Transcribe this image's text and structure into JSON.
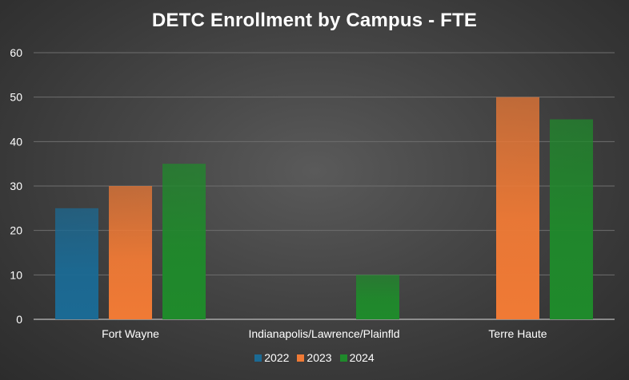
{
  "chart_data": {
    "type": "bar",
    "title": "DETC Enrollment by Campus - FTE",
    "xlabel": "",
    "ylabel": "",
    "categories": [
      "Fort Wayne",
      "Indianapolis/Lawrence/Plainfld",
      "Terre Haute"
    ],
    "series": [
      {
        "name": "2022",
        "values": [
          25,
          0,
          0
        ],
        "color": "#1b6a94"
      },
      {
        "name": "2023",
        "values": [
          30,
          0,
          50
        ],
        "color": "#f07a35"
      },
      {
        "name": "2024",
        "values": [
          35,
          10,
          45
        ],
        "color": "#1f8a2b"
      }
    ],
    "ylim": [
      0,
      60
    ],
    "yticks": [
      0,
      10,
      20,
      30,
      40,
      50,
      60
    ],
    "grid": true,
    "legend_position": "bottom"
  }
}
